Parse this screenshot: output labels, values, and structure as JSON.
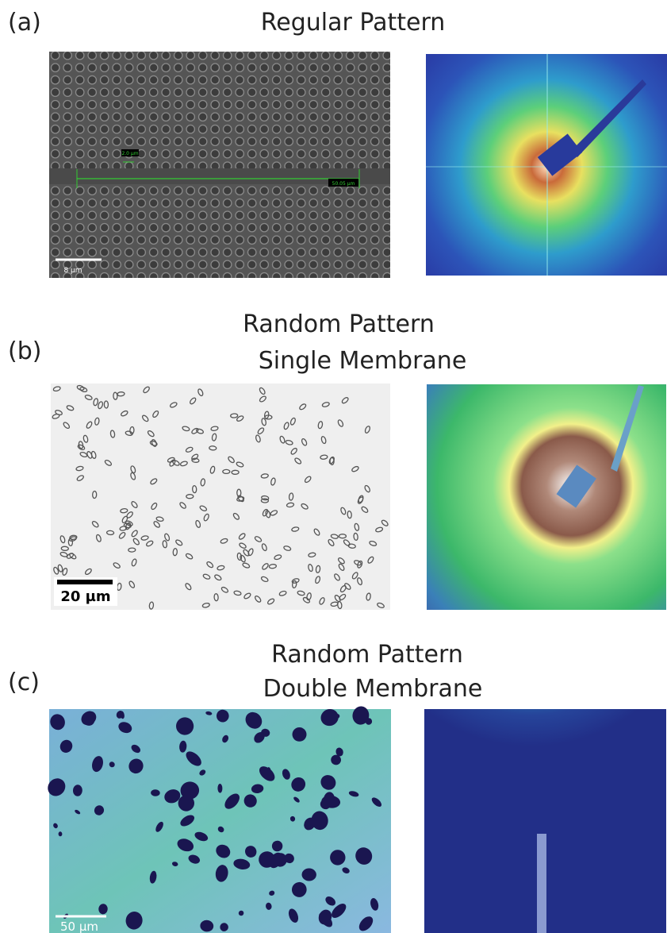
{
  "panels": [
    {
      "label": "(a)",
      "title": [
        "Regular Pattern"
      ],
      "scale_bar": "8 µm",
      "measurements": [
        "2.0 µm",
        "50.05 µm"
      ]
    },
    {
      "label": "(b)",
      "title": [
        "Random Pattern",
        "Single Membrane"
      ],
      "scale_bar": "20 µm"
    },
    {
      "label": "(c)",
      "title": [
        "Random Pattern",
        "Double Membrane"
      ],
      "scale_bar": "50 µm"
    }
  ]
}
